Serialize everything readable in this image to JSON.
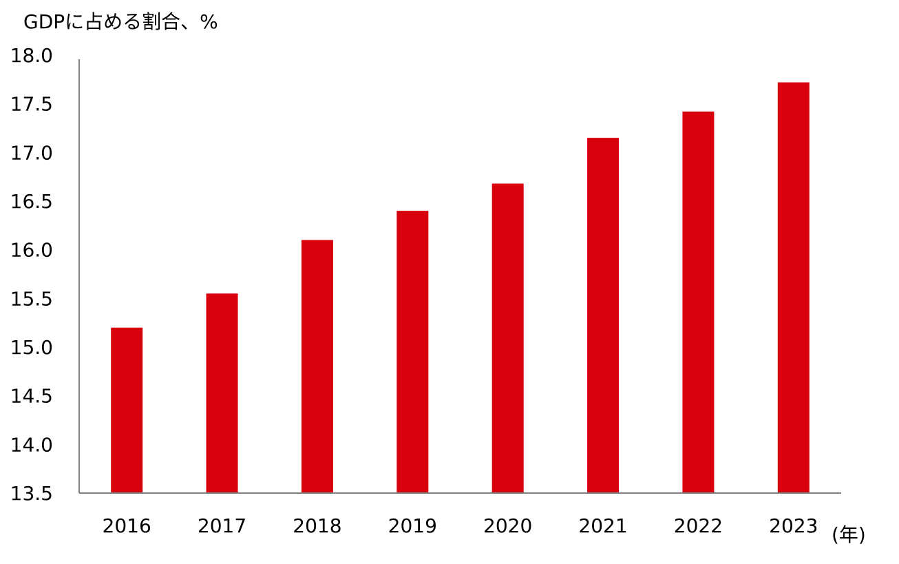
{
  "chart_data": {
    "type": "bar",
    "ylabel": "GDPに占める割合、%",
    "xunit": "(年)",
    "categories": [
      "2016",
      "2017",
      "2018",
      "2019",
      "2020",
      "2021",
      "2022",
      "2023"
    ],
    "values": [
      15.2,
      15.55,
      16.1,
      16.4,
      16.68,
      17.15,
      17.42,
      17.72
    ],
    "ylim": [
      13.5,
      18.0
    ],
    "yticks": [
      "13.5",
      "14.0",
      "14.5",
      "15.0",
      "15.5",
      "16.0",
      "16.5",
      "17.0",
      "17.5",
      "18.0"
    ],
    "grid": false,
    "bar_color": "#d9000d",
    "axis_color": "#808080"
  }
}
